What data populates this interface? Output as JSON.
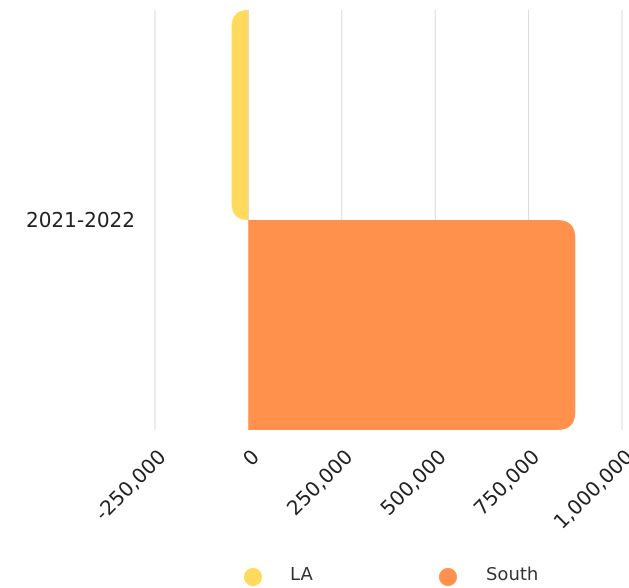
{
  "chart_data": {
    "type": "bar",
    "orientation": "horizontal",
    "categories": [
      "2021-2022"
    ],
    "series": [
      {
        "name": "LA",
        "values": [
          -45000
        ],
        "color": "#FFDA5C"
      },
      {
        "name": "South",
        "values": [
          875000
        ],
        "color": "#FF914D"
      }
    ],
    "xlim": [
      -250000,
      1000000
    ],
    "x_ticks": [
      -250000,
      0,
      250000,
      500000,
      750000,
      1000000
    ],
    "x_tick_labels": [
      "-250,000",
      "0",
      "250,000",
      "500,000",
      "750,000",
      "1,000,000"
    ],
    "grid": "vertical",
    "legend_position": "bottom",
    "title": "",
    "xlabel": "",
    "ylabel": ""
  }
}
